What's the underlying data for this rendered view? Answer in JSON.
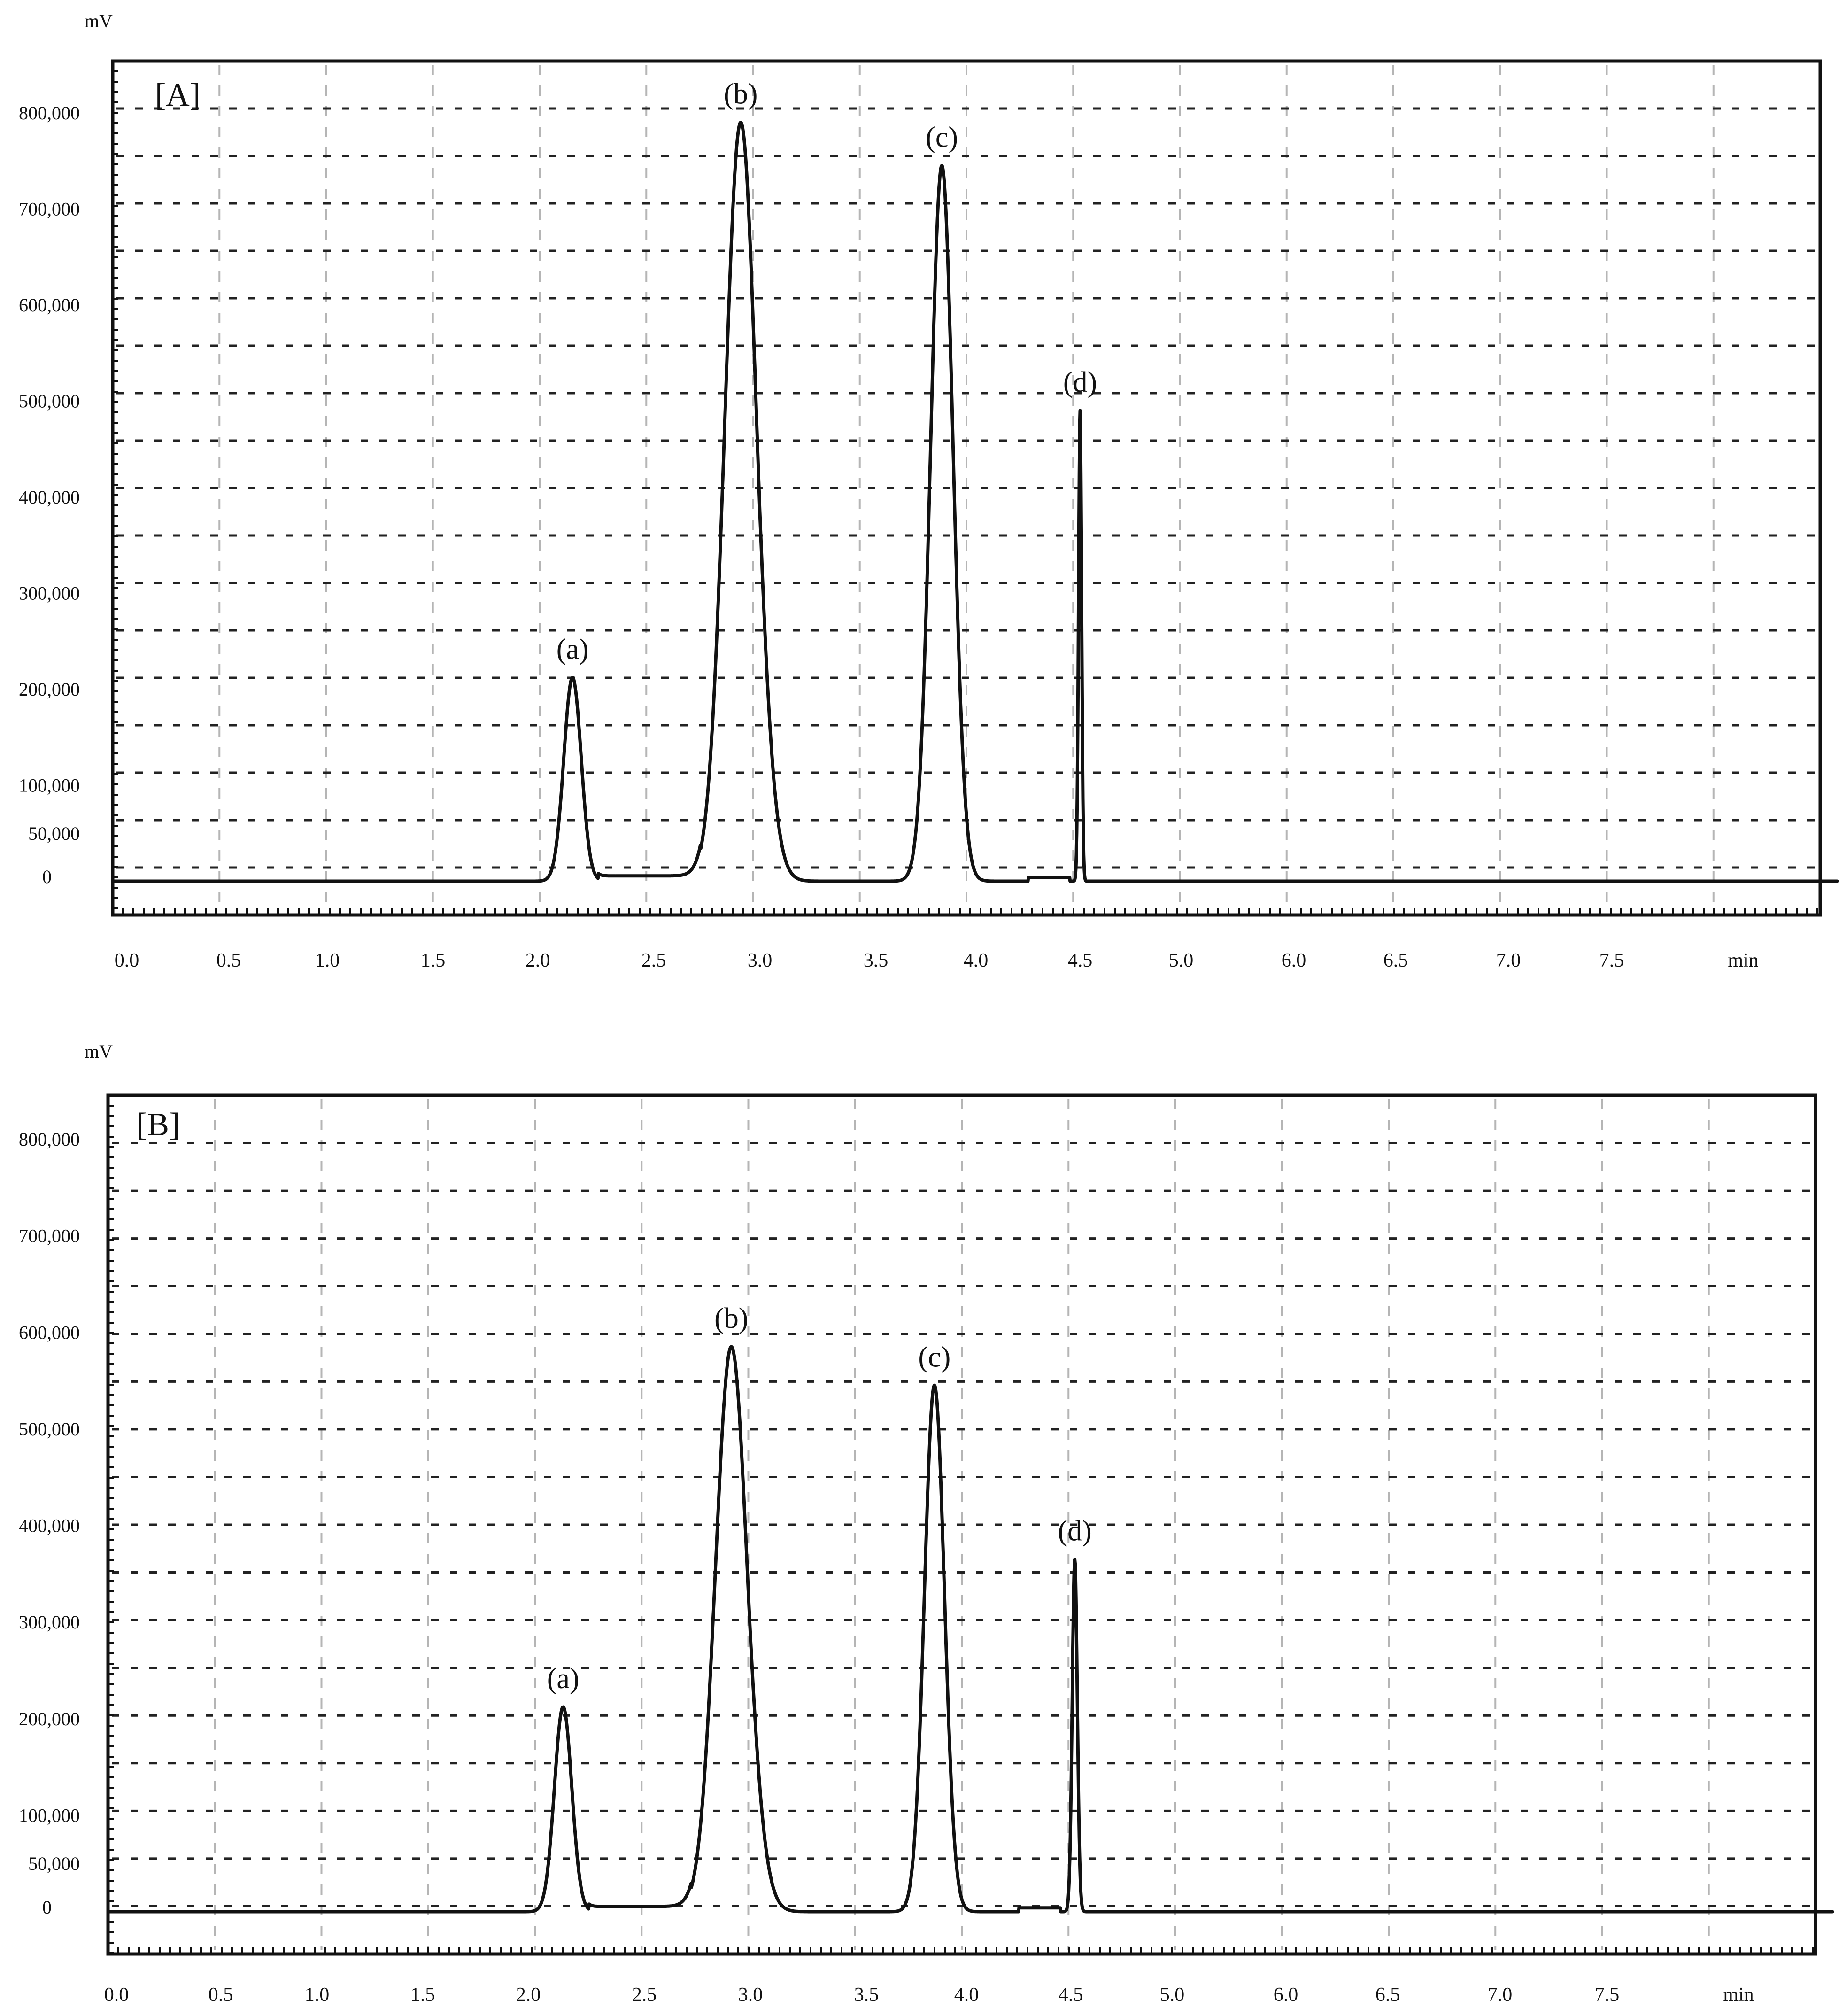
{
  "chart_data": [
    {
      "type": "line",
      "panel_label": "[A]",
      "ylabel": "mV",
      "xlabel": "min",
      "x_tick_labels": [
        "0.0",
        "0.5",
        "1.0",
        "1.5",
        "2.0",
        "2.5",
        "3.0",
        "3.5",
        "4.0",
        "4.5",
        "5.0",
        "6.0",
        "6.5",
        "7.0",
        "7.5"
      ],
      "y_tick_labels": [
        "800,000",
        "700,000",
        "600,000",
        "500,000",
        "400,000",
        "300,000",
        "200,000",
        "100,000",
        "50,000",
        "0"
      ],
      "y_tick_values": [
        800000,
        700000,
        600000,
        500000,
        400000,
        300000,
        200000,
        100000,
        50000,
        0
      ],
      "grid": true,
      "series": [
        {
          "peaks": [
            {
              "label": "(a)",
              "x": 2.15,
              "y": 212000,
              "half_width": 0.06
            },
            {
              "label": "(b)",
              "x": 2.91,
              "y": 790000,
              "half_width": 0.12
            },
            {
              "label": "(c)",
              "x": 3.83,
              "y": 745000,
              "half_width": 0.09
            },
            {
              "label": "(d)",
              "x": 4.5,
              "y": 490000,
              "half_width": 0.012
            }
          ]
        }
      ]
    },
    {
      "type": "line",
      "panel_label": "[B]",
      "ylabel": "mV",
      "xlabel": "min",
      "x_tick_labels": [
        "0.0",
        "0.5",
        "1.0",
        "1.5",
        "2.0",
        "2.5",
        "3.0",
        "3.5",
        "4.0",
        "4.5",
        "5.0",
        "6.0",
        "6.5",
        "7.0",
        "7.5"
      ],
      "y_tick_labels": [
        "800,000",
        "700,000",
        "600,000",
        "500,000",
        "400,000",
        "300,000",
        "200,000",
        "100,000",
        "50,000",
        "0"
      ],
      "y_tick_values": [
        800000,
        700000,
        600000,
        500000,
        400000,
        300000,
        200000,
        100000,
        50000,
        0
      ],
      "grid": true,
      "series": [
        {
          "peaks": [
            {
              "label": "(a)",
              "x": 2.15,
              "y": 212000,
              "half_width": 0.06
            },
            {
              "label": "(b)",
              "x": 2.91,
              "y": 585000,
              "half_width": 0.12
            },
            {
              "label": "(c)",
              "x": 3.84,
              "y": 545000,
              "half_width": 0.08
            },
            {
              "label": "(d)",
              "x": 4.52,
              "y": 365000,
              "half_width": 0.02
            }
          ]
        }
      ]
    }
  ]
}
